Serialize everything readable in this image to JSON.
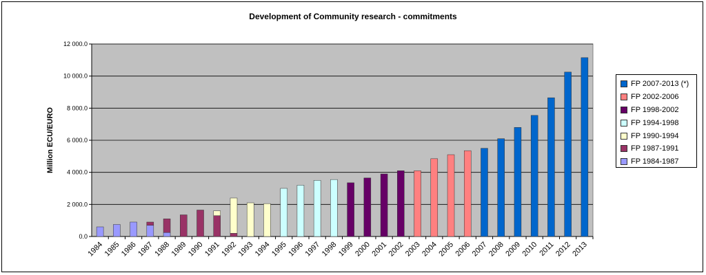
{
  "chart_data": {
    "type": "bar",
    "title": "Development of Community research - commitments",
    "xlabel": "",
    "ylabel": "Million ECU/EURO",
    "ylim": [
      0,
      12000
    ],
    "yticks": [
      "0.0",
      "2 000.0",
      "4 000.0",
      "6 000.0",
      "8 000.0",
      "10 000.0",
      "12 000.0"
    ],
    "ytick_values": [
      0,
      2000,
      4000,
      6000,
      8000,
      10000,
      12000
    ],
    "grid": true,
    "legend_position": "right",
    "plot_background": "#c0c0c0",
    "categories": [
      "1984",
      "1985",
      "1986",
      "1987",
      "1988",
      "1989",
      "1990",
      "1991",
      "1992",
      "1993",
      "1994",
      "1995",
      "1996",
      "1997",
      "1998",
      "1999",
      "2000",
      "2001",
      "2002",
      "2003",
      "2004",
      "2005",
      "2006",
      "2007",
      "2008",
      "2009",
      "2010",
      "2011",
      "2012",
      "2013"
    ],
    "series": [
      {
        "name": "FP 1984-1987",
        "color": "#9999ff",
        "values": [
          600,
          750,
          900,
          700,
          250,
          0,
          0,
          0,
          0,
          0,
          0,
          0,
          0,
          0,
          0,
          0,
          0,
          0,
          0,
          0,
          0,
          0,
          0,
          0,
          0,
          0,
          0,
          0,
          0,
          0
        ]
      },
      {
        "name": "FP 1987-1991",
        "color": "#993366",
        "values": [
          0,
          0,
          0,
          200,
          850,
          1350,
          1650,
          1300,
          200,
          0,
          0,
          0,
          0,
          0,
          0,
          0,
          0,
          0,
          0,
          0,
          0,
          0,
          0,
          0,
          0,
          0,
          0,
          0,
          0,
          0
        ]
      },
      {
        "name": "FP 1990-1994",
        "color": "#ffffcc",
        "values": [
          0,
          0,
          0,
          0,
          0,
          0,
          0,
          300,
          2200,
          2100,
          2050,
          0,
          0,
          0,
          0,
          0,
          0,
          0,
          0,
          0,
          0,
          0,
          0,
          0,
          0,
          0,
          0,
          0,
          0,
          0
        ]
      },
      {
        "name": "FP 1994-1998",
        "color": "#ccffff",
        "values": [
          0,
          0,
          0,
          0,
          0,
          0,
          0,
          0,
          0,
          0,
          0,
          3000,
          3200,
          3500,
          3550,
          0,
          0,
          0,
          0,
          0,
          0,
          0,
          0,
          0,
          0,
          0,
          0,
          0,
          0,
          0
        ]
      },
      {
        "name": "FP 1998-2002",
        "color": "#660066",
        "values": [
          0,
          0,
          0,
          0,
          0,
          0,
          0,
          0,
          0,
          0,
          0,
          0,
          0,
          0,
          0,
          3350,
          3650,
          3900,
          4100,
          0,
          0,
          0,
          0,
          0,
          0,
          0,
          0,
          0,
          0,
          0
        ]
      },
      {
        "name": "FP 2002-2006",
        "color": "#ff8080",
        "values": [
          0,
          0,
          0,
          0,
          0,
          0,
          0,
          0,
          0,
          0,
          0,
          0,
          0,
          0,
          0,
          0,
          0,
          0,
          0,
          4100,
          4850,
          5100,
          5350,
          0,
          0,
          0,
          0,
          0,
          0,
          0
        ]
      },
      {
        "name": "FP 2007-2013 (*)",
        "color": "#0066cc",
        "values": [
          0,
          0,
          0,
          0,
          0,
          0,
          0,
          0,
          0,
          0,
          0,
          0,
          0,
          0,
          0,
          0,
          0,
          0,
          0,
          0,
          0,
          0,
          0,
          5500,
          6100,
          6800,
          7550,
          8650,
          10250,
          11150
        ]
      }
    ]
  }
}
